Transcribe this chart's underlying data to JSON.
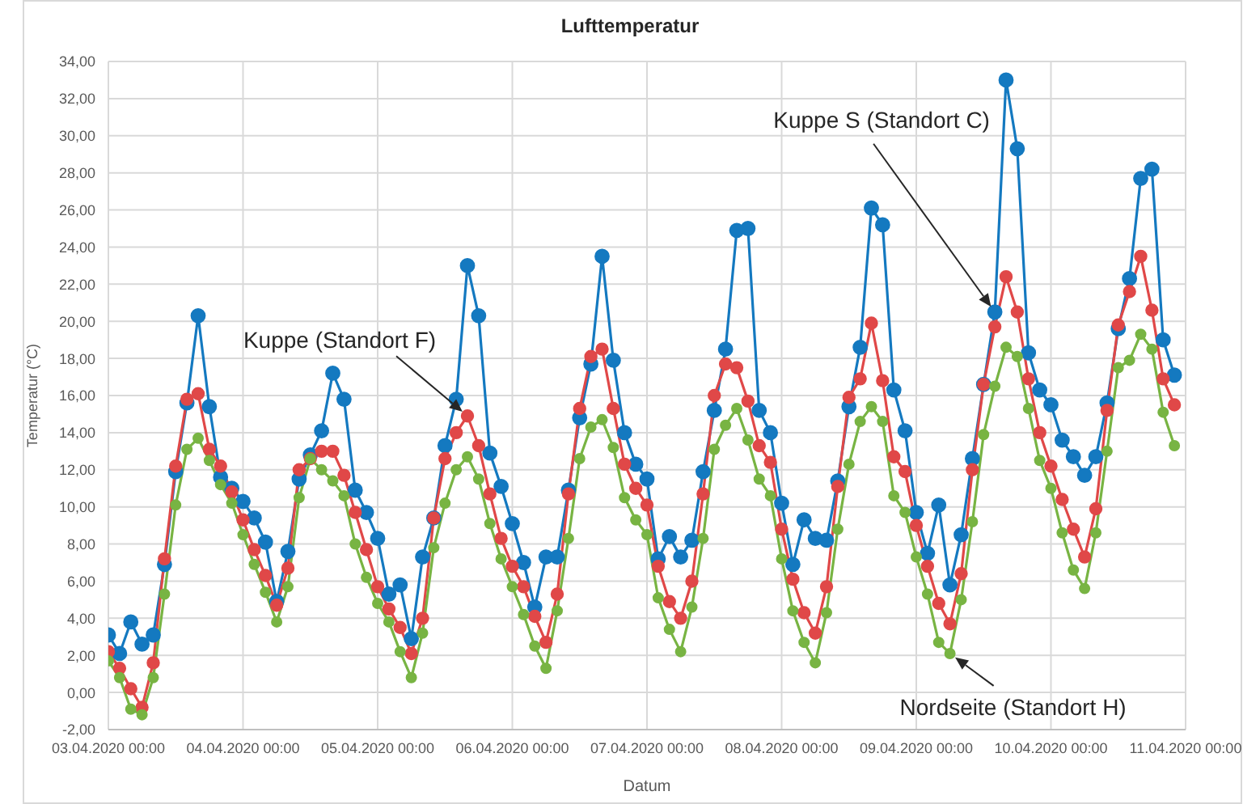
{
  "chart_data": {
    "type": "line",
    "title": "Lufttemperatur",
    "xlabel": "Datum",
    "ylabel": "Temperatur (°C)",
    "x": [
      "2020-04-03T00:00",
      "2020-04-03T02:00",
      "2020-04-03T04:00",
      "2020-04-03T06:00",
      "2020-04-03T08:00",
      "2020-04-03T10:00",
      "2020-04-03T12:00",
      "2020-04-03T14:00",
      "2020-04-03T16:00",
      "2020-04-03T18:00",
      "2020-04-03T20:00",
      "2020-04-03T22:00",
      "2020-04-04T00:00",
      "2020-04-04T02:00",
      "2020-04-04T04:00",
      "2020-04-04T06:00",
      "2020-04-04T08:00",
      "2020-04-04T10:00",
      "2020-04-04T12:00",
      "2020-04-04T14:00",
      "2020-04-04T16:00",
      "2020-04-04T18:00",
      "2020-04-04T20:00",
      "2020-04-04T22:00",
      "2020-04-05T00:00",
      "2020-04-05T02:00",
      "2020-04-05T04:00",
      "2020-04-05T06:00",
      "2020-04-05T08:00",
      "2020-04-05T10:00",
      "2020-04-05T12:00",
      "2020-04-05T14:00",
      "2020-04-05T16:00",
      "2020-04-05T18:00",
      "2020-04-05T20:00",
      "2020-04-05T22:00",
      "2020-04-06T00:00",
      "2020-04-06T02:00",
      "2020-04-06T04:00",
      "2020-04-06T06:00",
      "2020-04-06T08:00",
      "2020-04-06T10:00",
      "2020-04-06T12:00",
      "2020-04-06T14:00",
      "2020-04-06T16:00",
      "2020-04-06T18:00",
      "2020-04-06T20:00",
      "2020-04-06T22:00",
      "2020-04-07T00:00",
      "2020-04-07T02:00",
      "2020-04-07T04:00",
      "2020-04-07T06:00",
      "2020-04-07T08:00",
      "2020-04-07T10:00",
      "2020-04-07T12:00",
      "2020-04-07T14:00",
      "2020-04-07T16:00",
      "2020-04-07T18:00",
      "2020-04-07T20:00",
      "2020-04-07T22:00",
      "2020-04-08T00:00",
      "2020-04-08T02:00",
      "2020-04-08T04:00",
      "2020-04-08T06:00",
      "2020-04-08T08:00",
      "2020-04-08T10:00",
      "2020-04-08T12:00",
      "2020-04-08T14:00",
      "2020-04-08T16:00",
      "2020-04-08T18:00",
      "2020-04-08T20:00",
      "2020-04-08T22:00",
      "2020-04-09T00:00",
      "2020-04-09T02:00",
      "2020-04-09T04:00",
      "2020-04-09T06:00",
      "2020-04-09T08:00",
      "2020-04-09T10:00",
      "2020-04-09T12:00",
      "2020-04-09T14:00",
      "2020-04-09T16:00",
      "2020-04-09T18:00",
      "2020-04-09T20:00",
      "2020-04-09T22:00",
      "2020-04-10T00:00",
      "2020-04-10T02:00",
      "2020-04-10T04:00",
      "2020-04-10T06:00",
      "2020-04-10T08:00",
      "2020-04-10T10:00",
      "2020-04-10T12:00",
      "2020-04-10T14:00",
      "2020-04-10T16:00",
      "2020-04-10T18:00",
      "2020-04-10T20:00",
      "2020-04-10T22:00"
    ],
    "xlim": [
      "2020-04-03T00:00",
      "2020-04-11T00:00"
    ],
    "xticks": [
      {
        "value": "2020-04-03T00:00",
        "label": "03.04.2020 00:00"
      },
      {
        "value": "2020-04-04T00:00",
        "label": "04.04.2020 00:00"
      },
      {
        "value": "2020-04-05T00:00",
        "label": "05.04.2020 00:00"
      },
      {
        "value": "2020-04-06T00:00",
        "label": "06.04.2020 00:00"
      },
      {
        "value": "2020-04-07T00:00",
        "label": "07.04.2020 00:00"
      },
      {
        "value": "2020-04-08T00:00",
        "label": "08.04.2020 00:00"
      },
      {
        "value": "2020-04-09T00:00",
        "label": "09.04.2020 00:00"
      },
      {
        "value": "2020-04-10T00:00",
        "label": "10.04.2020 00:00"
      },
      {
        "value": "2020-04-11T00:00",
        "label": "11.04.2020 00:00"
      }
    ],
    "ylim": [
      -2,
      34
    ],
    "yticks": [
      {
        "value": -2,
        "label": "-2,00"
      },
      {
        "value": 0,
        "label": "0,00"
      },
      {
        "value": 2,
        "label": "2,00"
      },
      {
        "value": 4,
        "label": "4,00"
      },
      {
        "value": 6,
        "label": "6,00"
      },
      {
        "value": 8,
        "label": "8,00"
      },
      {
        "value": 10,
        "label": "10,00"
      },
      {
        "value": 12,
        "label": "12,00"
      },
      {
        "value": 14,
        "label": "14,00"
      },
      {
        "value": 16,
        "label": "16,00"
      },
      {
        "value": 18,
        "label": "18,00"
      },
      {
        "value": 20,
        "label": "20,00"
      },
      {
        "value": 22,
        "label": "22,00"
      },
      {
        "value": 24,
        "label": "24,00"
      },
      {
        "value": 26,
        "label": "26,00"
      },
      {
        "value": 28,
        "label": "28,00"
      },
      {
        "value": 30,
        "label": "30,00"
      },
      {
        "value": 32,
        "label": "32,00"
      },
      {
        "value": 34,
        "label": "34,00"
      }
    ],
    "grid": true,
    "marker": "circle",
    "line_style": "solid",
    "series": [
      {
        "name": "Kuppe S (Standort C)",
        "color": "#1479c0",
        "values": [
          3.1,
          2.1,
          3.8,
          2.6,
          3.1,
          6.9,
          11.9,
          15.6,
          20.3,
          15.4,
          11.6,
          11.0,
          10.3,
          9.4,
          8.1,
          4.9,
          7.6,
          11.5,
          12.8,
          14.1,
          17.2,
          15.8,
          10.9,
          9.7,
          8.3,
          5.3,
          5.8,
          2.9,
          7.3,
          9.4,
          13.3,
          15.8,
          23.0,
          20.3,
          12.9,
          11.1,
          9.1,
          7.0,
          4.6,
          7.3,
          7.3,
          10.9,
          14.8,
          17.7,
          23.5,
          17.9,
          14.0,
          12.3,
          11.5,
          7.2,
          8.4,
          7.3,
          8.2,
          11.9,
          15.2,
          18.5,
          24.9,
          25.0,
          15.2,
          14.0,
          10.2,
          6.9,
          9.3,
          8.3,
          8.2,
          11.4,
          15.4,
          18.6,
          26.1,
          25.2,
          16.3,
          14.1,
          9.7,
          7.5,
          10.1,
          5.8,
          8.5,
          12.6,
          16.6,
          20.5,
          33.0,
          29.3,
          18.3,
          16.3,
          15.5,
          13.6,
          12.7,
          11.7,
          12.7,
          15.6,
          19.6,
          22.3,
          27.7,
          28.2,
          19.0,
          17.1
        ]
      },
      {
        "name": "Kuppe (Standort F)",
        "color": "#e04848",
        "values": [
          2.2,
          1.3,
          0.2,
          -0.8,
          1.6,
          7.2,
          12.2,
          15.8,
          16.1,
          13.1,
          12.2,
          10.8,
          9.3,
          7.7,
          6.3,
          4.7,
          6.7,
          12.0,
          12.6,
          13.0,
          13.0,
          11.7,
          9.7,
          7.7,
          5.7,
          4.5,
          3.5,
          2.1,
          4.0,
          9.4,
          12.6,
          14.0,
          14.9,
          13.3,
          10.7,
          8.3,
          6.8,
          5.7,
          4.1,
          2.7,
          5.3,
          10.7,
          15.3,
          18.1,
          18.5,
          15.3,
          12.3,
          11.0,
          10.1,
          6.8,
          4.9,
          4.0,
          6.0,
          10.7,
          16.0,
          17.7,
          17.5,
          15.7,
          13.3,
          12.4,
          8.8,
          6.1,
          4.3,
          3.2,
          5.7,
          11.1,
          15.9,
          16.9,
          19.9,
          16.8,
          12.7,
          11.9,
          9.0,
          6.8,
          4.8,
          3.7,
          6.4,
          12.0,
          16.6,
          19.7,
          22.4,
          20.5,
          16.9,
          14.0,
          12.2,
          10.4,
          8.8,
          7.3,
          9.9,
          15.2,
          19.8,
          21.6,
          23.5,
          20.6,
          16.9,
          15.5
        ]
      },
      {
        "name": "Nordseite (Standort H)",
        "color": "#78b443",
        "values": [
          1.7,
          0.8,
          -0.9,
          -1.2,
          0.8,
          5.3,
          10.1,
          13.1,
          13.7,
          12.5,
          11.2,
          10.2,
          8.5,
          6.9,
          5.4,
          3.8,
          5.7,
          10.5,
          12.6,
          12.0,
          11.4,
          10.6,
          8.0,
          6.2,
          4.8,
          3.8,
          2.2,
          0.8,
          3.2,
          7.8,
          10.2,
          12.0,
          12.7,
          11.5,
          9.1,
          7.2,
          5.7,
          4.2,
          2.5,
          1.3,
          4.4,
          8.3,
          12.6,
          14.3,
          14.7,
          13.2,
          10.5,
          9.3,
          8.5,
          5.1,
          3.4,
          2.2,
          4.6,
          8.3,
          13.1,
          14.4,
          15.3,
          13.6,
          11.5,
          10.6,
          7.2,
          4.4,
          2.7,
          1.6,
          4.3,
          8.8,
          12.3,
          14.6,
          15.4,
          14.6,
          10.6,
          9.7,
          7.3,
          5.3,
          2.7,
          2.1,
          5.0,
          9.2,
          13.9,
          16.5,
          18.6,
          18.1,
          15.3,
          12.5,
          11.0,
          8.6,
          6.6,
          5.6,
          8.6,
          13.0,
          17.5,
          17.9,
          19.3,
          18.5,
          15.1,
          13.3
        ]
      }
    ]
  }
}
